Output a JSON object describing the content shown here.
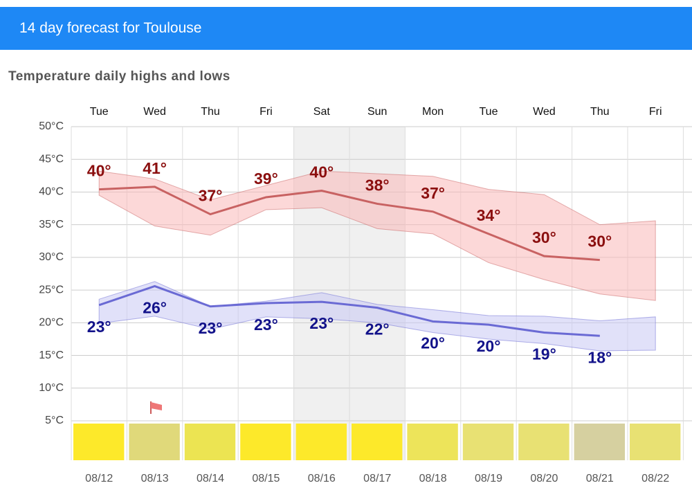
{
  "header": {
    "title": "14 day forecast for Toulouse"
  },
  "chart_data": {
    "type": "line",
    "title": "Temperature daily highs and lows",
    "categories": [
      "Tue",
      "Wed",
      "Thu",
      "Fri",
      "Sat",
      "Sun",
      "Mon",
      "Tue",
      "Wed",
      "Thu",
      "Fri"
    ],
    "dates": [
      "08/12",
      "08/13",
      "08/14",
      "08/15",
      "08/16",
      "08/17",
      "08/18",
      "08/19",
      "08/20",
      "08/21",
      "08/22"
    ],
    "ylim": [
      5,
      50
    ],
    "yticks": [
      {
        "value": 5,
        "label": "5°C"
      },
      {
        "value": 10,
        "label": "10°C"
      },
      {
        "value": 15,
        "label": "15°C"
      },
      {
        "value": 20,
        "label": "20°C"
      },
      {
        "value": 25,
        "label": "25°C"
      },
      {
        "value": 30,
        "label": "30°C"
      },
      {
        "value": 35,
        "label": "35°C"
      },
      {
        "value": 40,
        "label": "40°C"
      },
      {
        "value": 45,
        "label": "45°C"
      },
      {
        "value": 50,
        "label": "50°C"
      }
    ],
    "grid": true,
    "series": [
      {
        "color": "#c86262",
        "label_color": "#8b0f0f",
        "band_color": "#f9b8b8",
        "values": [
          40.4,
          40.8,
          36.6,
          39.2,
          40.2,
          38.2,
          37.0,
          33.6,
          30.2,
          29.6,
          null
        ],
        "value_labels": [
          "40°",
          "41°",
          "37°",
          "39°",
          "40°",
          "38°",
          "37°",
          "34°",
          "30°",
          "30°",
          null
        ],
        "band_upper": [
          43.2,
          42.0,
          38.8,
          41.0,
          43.2,
          42.8,
          42.4,
          40.4,
          39.6,
          35.0,
          35.6
        ],
        "band_lower": [
          39.5,
          34.8,
          33.4,
          37.3,
          37.6,
          34.4,
          33.6,
          29.2,
          26.6,
          24.4,
          23.4
        ]
      },
      {
        "color": "#6a6ad4",
        "label_color": "#12128a",
        "band_color": "#c8c8f4",
        "values": [
          22.7,
          25.6,
          22.5,
          23.0,
          23.2,
          22.3,
          20.2,
          19.7,
          18.5,
          18.0,
          null
        ],
        "value_labels": [
          "23°",
          "26°",
          "23°",
          "23°",
          "23°",
          "22°",
          "20°",
          "20°",
          "19°",
          "18°",
          null
        ],
        "band_upper": [
          23.6,
          26.3,
          22.5,
          23.3,
          24.6,
          22.8,
          22.0,
          21.1,
          21.0,
          20.3,
          20.9
        ],
        "band_lower": [
          19.9,
          21.0,
          19.0,
          20.9,
          20.6,
          20.0,
          18.5,
          17.5,
          16.8,
          15.7,
          15.8
        ]
      }
    ],
    "condition_colors": [
      "#fde92a",
      "#e0d97a",
      "#ece452",
      "#fde92a",
      "#fde92a",
      "#fde92a",
      "#ede45a",
      "#e8e173",
      "#e8e173",
      "#d6d0a0",
      "#e8e173"
    ]
  }
}
